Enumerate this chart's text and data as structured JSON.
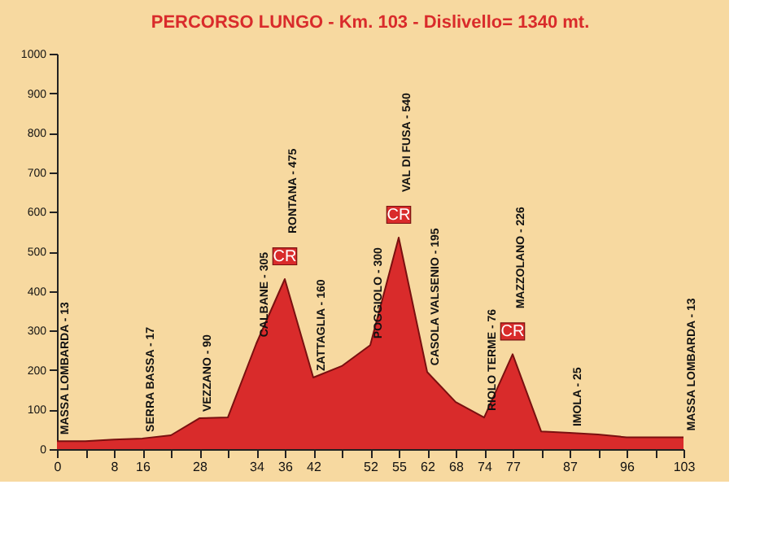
{
  "chart_data": {
    "type": "area",
    "title": "PERCORSO LUNGO - Km. 103 - Dislivello= 1340 mt.",
    "categories": [
      "0",
      null,
      "8",
      "16",
      null,
      "28",
      null,
      "34",
      "36",
      "42",
      null,
      "52",
      "55",
      "62",
      "68",
      "74",
      "77",
      null,
      "87",
      null,
      "96",
      null,
      "103"
    ],
    "series": [
      {
        "color": "#d92b2b",
        "values": [
          20,
          20,
          24,
          27,
          35,
          78,
          80,
          267,
          430,
          181,
          210,
          263,
          535,
          195,
          119,
          80,
          240,
          45,
          41,
          37,
          30,
          30,
          30
        ]
      }
    ],
    "ylim": [
      0,
      1000
    ],
    "yticks": [
      0,
      100,
      200,
      300,
      400,
      500,
      600,
      700,
      800,
      900,
      1000
    ],
    "annotations": [
      {
        "text": "MASSA LOMBARDA - 13",
        "x": "0",
        "y": 20
      },
      {
        "text": "SERRA BASSA - 17",
        "x": "16",
        "y": 27
      },
      {
        "text": "VEZZANO - 90",
        "x": "28",
        "y": 78
      },
      {
        "text": "CALBANE - 305",
        "x": "34",
        "y": 267
      },
      "RONTANA - 475",
      {
        "text": "CR",
        "x": "36",
        "y": 430
      },
      {
        "text": "ZATTAGLIA - 160",
        "x": "42",
        "y": 181
      },
      {
        "text": "POGGIOLO - 300",
        "x": "52",
        "y": 263
      },
      "VAL DI FUSA - 540",
      {
        "text": "CR",
        "x": "55",
        "y": 535
      },
      {
        "text": "CASOLA VALSENIO - 195",
        "x": "62",
        "y": 195
      },
      {
        "text": "RIOLO TERME - 76",
        "x": "74",
        "y": 80
      },
      "MAZZOLANO - 226",
      {
        "text": "CR",
        "x": "77",
        "y": 240
      },
      {
        "text": "IMOLA - 25",
        "x": "87",
        "y": 41
      },
      {
        "text": "MASSA LOMBARDA - 13",
        "x": "103",
        "y": 30
      }
    ]
  }
}
